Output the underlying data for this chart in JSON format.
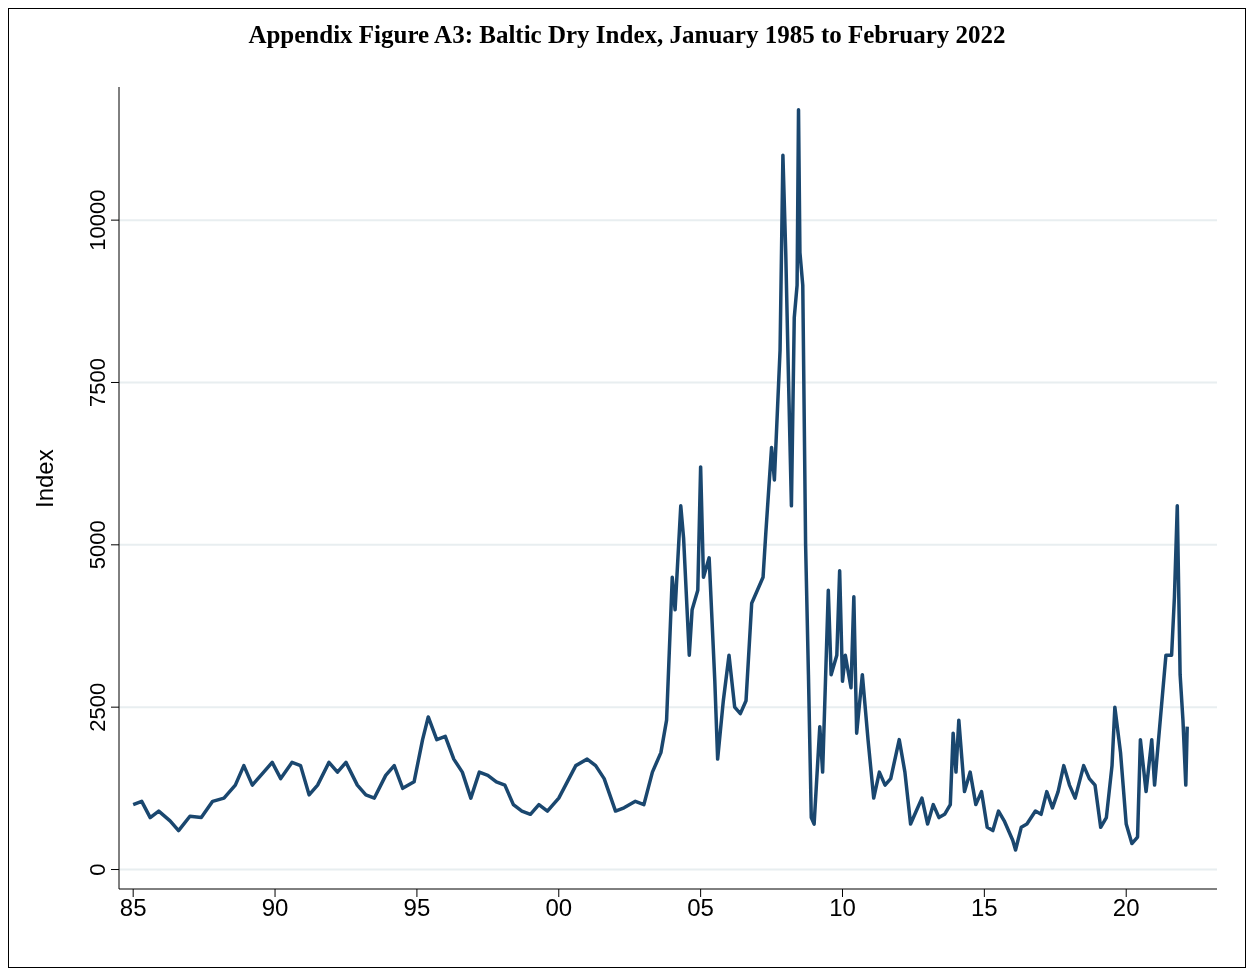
{
  "chart_data": {
    "type": "line",
    "title": "Appendix Figure A3: Baltic Dry Index, January 1985 to February 2022",
    "ylabel": "Index",
    "xlim": [
      1984.5,
      2023.2
    ],
    "xticks": [
      {
        "value": 1985,
        "label": "85"
      },
      {
        "value": 1990,
        "label": "90"
      },
      {
        "value": 1995,
        "label": "95"
      },
      {
        "value": 2000,
        "label": "00"
      },
      {
        "value": 2005,
        "label": "05"
      },
      {
        "value": 2010,
        "label": "10"
      },
      {
        "value": 2015,
        "label": "15"
      },
      {
        "value": 2020,
        "label": "20"
      }
    ],
    "ylim": [
      -300,
      12050
    ],
    "yticks": [
      0,
      2500,
      5000,
      7500,
      10000
    ],
    "grid": "y",
    "x": [
      1985.0,
      1985.3,
      1985.6,
      1985.9,
      1986.3,
      1986.6,
      1987.0,
      1987.4,
      1987.8,
      1988.2,
      1988.6,
      1988.9,
      1989.2,
      1989.6,
      1989.9,
      1990.2,
      1990.6,
      1990.9,
      1991.2,
      1991.5,
      1991.9,
      1992.2,
      1992.5,
      1992.9,
      1993.2,
      1993.5,
      1993.9,
      1994.2,
      1994.5,
      1994.9,
      1995.2,
      1995.4,
      1995.7,
      1996.0,
      1996.3,
      1996.6,
      1996.9,
      1997.2,
      1997.5,
      1997.8,
      1998.1,
      1998.4,
      1998.7,
      1999.0,
      1999.3,
      1999.6,
      2000.0,
      2000.3,
      2000.6,
      2001.0,
      2001.3,
      2001.6,
      2002.0,
      2002.3,
      2002.7,
      2003.0,
      2003.3,
      2003.6,
      2003.8,
      2004.0,
      2004.1,
      2004.3,
      2004.4,
      2004.6,
      2004.7,
      2004.9,
      2005.0,
      2005.1,
      2005.3,
      2005.5,
      2005.6,
      2005.8,
      2006.0,
      2006.2,
      2006.4,
      2006.6,
      2006.8,
      2007.0,
      2007.2,
      2007.3,
      2007.5,
      2007.6,
      2007.8,
      2007.9,
      2008.0,
      2008.1,
      2008.2,
      2008.3,
      2008.4,
      2008.45,
      2008.5,
      2008.6,
      2008.7,
      2008.8,
      2008.9,
      2009.0,
      2009.2,
      2009.3,
      2009.5,
      2009.6,
      2009.8,
      2009.9,
      2010.0,
      2010.1,
      2010.3,
      2010.4,
      2010.5,
      2010.7,
      2010.9,
      2011.1,
      2011.3,
      2011.5,
      2011.7,
      2011.9,
      2012.0,
      2012.2,
      2012.4,
      2012.6,
      2012.8,
      2013.0,
      2013.2,
      2013.4,
      2013.6,
      2013.8,
      2013.9,
      2014.0,
      2014.1,
      2014.3,
      2014.5,
      2014.7,
      2014.9,
      2015.1,
      2015.3,
      2015.5,
      2015.7,
      2016.0,
      2016.1,
      2016.3,
      2016.5,
      2016.8,
      2017.0,
      2017.2,
      2017.4,
      2017.6,
      2017.8,
      2018.0,
      2018.2,
      2018.5,
      2018.7,
      2018.9,
      2019.1,
      2019.3,
      2019.5,
      2019.6,
      2019.8,
      2020.0,
      2020.2,
      2020.4,
      2020.5,
      2020.7,
      2020.9,
      2021.0,
      2021.2,
      2021.4,
      2021.6,
      2021.7,
      2021.8,
      2021.9,
      2022.0,
      2022.1,
      2022.15
    ],
    "series": [
      {
        "color": "#1a476f",
        "values": [
          1000,
          1050,
          800,
          900,
          750,
          600,
          820,
          800,
          1050,
          1100,
          1300,
          1600,
          1300,
          1500,
          1650,
          1400,
          1650,
          1600,
          1150,
          1300,
          1650,
          1500,
          1650,
          1300,
          1150,
          1100,
          1450,
          1600,
          1250,
          1350,
          2000,
          2350,
          2000,
          2050,
          1700,
          1500,
          1100,
          1500,
          1450,
          1350,
          1300,
          1000,
          900,
          850,
          1000,
          900,
          1100,
          1350,
          1600,
          1700,
          1600,
          1400,
          900,
          950,
          1050,
          1000,
          1500,
          1800,
          2300,
          4500,
          4000,
          5600,
          5100,
          3300,
          4000,
          4300,
          6200,
          4500,
          4800,
          2900,
          1700,
          2600,
          3300,
          2500,
          2400,
          2600,
          4100,
          4300,
          4500,
          5200,
          6500,
          6000,
          8000,
          11000,
          9500,
          7500,
          5600,
          8500,
          9000,
          11700,
          9500,
          9000,
          5000,
          3000,
          800,
          700,
          2200,
          1500,
          4300,
          3000,
          3300,
          4600,
          2900,
          3300,
          2800,
          4200,
          2100,
          3000,
          2000,
          1100,
          1500,
          1300,
          1400,
          1800,
          2000,
          1500,
          700,
          900,
          1100,
          700,
          1000,
          800,
          850,
          1000,
          2100,
          1500,
          2300,
          1200,
          1500,
          1000,
          1200,
          650,
          600,
          900,
          750,
          450,
          300,
          650,
          700,
          900,
          850,
          1200,
          950,
          1200,
          1600,
          1300,
          1100,
          1600,
          1400,
          1300,
          650,
          800,
          1600,
          2500,
          1800,
          700,
          400,
          500,
          2000,
          1200,
          2000,
          1300,
          2300,
          3300,
          3300,
          4200,
          5600,
          3000,
          2300,
          1300,
          2200
        ]
      }
    ]
  }
}
